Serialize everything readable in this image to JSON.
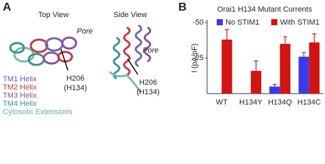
{
  "panel_a": {
    "label": "A",
    "top_view": "Top View",
    "side_view": "Side View",
    "pore_top": "Pore",
    "pore_side": "Pore",
    "residue_top": "H206",
    "residue_top_alt": "(H134)",
    "residue_side": "H206",
    "residue_side_alt": "(H134)",
    "legend": [
      "TM1 Helix",
      "TM2 Helix",
      "TM3 Helix",
      "TM4 Helix",
      "Cytosolic Extensions"
    ]
  },
  "chart_data": {
    "type": "bar",
    "panel_label": "B",
    "title": "Orai1 H134 Mutant Currents",
    "y_label": "I (pA/pF)",
    "categories": [
      "WT",
      "H134Y",
      "H134Q",
      "H134C"
    ],
    "series": [
      {
        "name": "No STIM1",
        "color": "#3b3bec",
        "values": [
          -0.3,
          -0.3,
          -5,
          -26
        ],
        "errors": [
          0,
          0,
          1.5,
          3
        ]
      },
      {
        "name": "With STIM1",
        "color": "#d11414",
        "values": [
          -38,
          -16,
          -35,
          -36
        ],
        "errors": [
          7,
          7,
          5,
          6
        ]
      }
    ],
    "ylim": [
      0,
      -50
    ],
    "yticks": [
      -50,
      -25
    ],
    "legend": "top"
  }
}
